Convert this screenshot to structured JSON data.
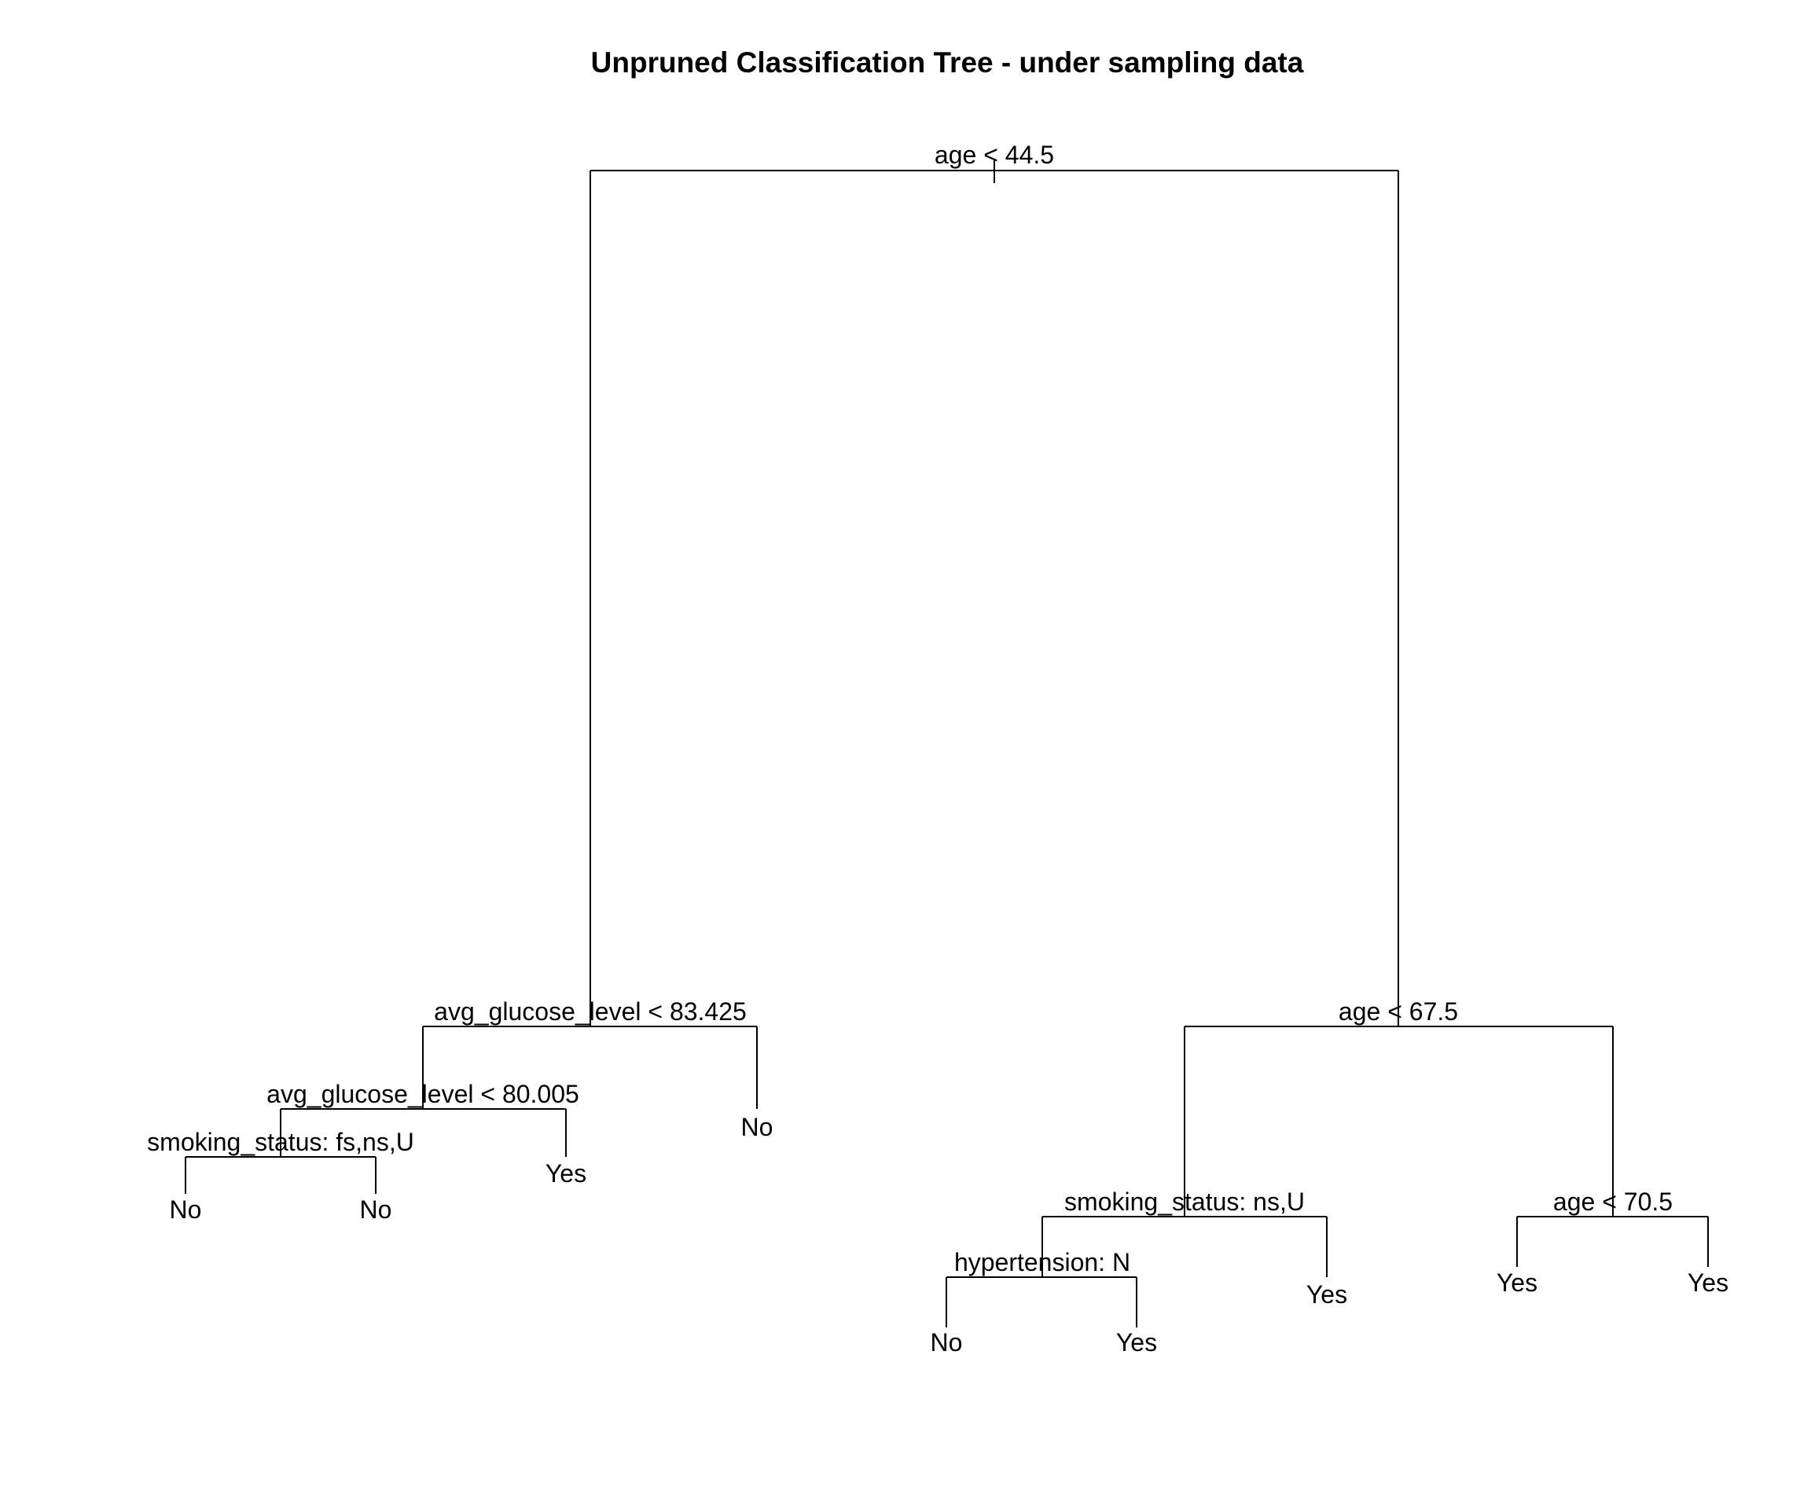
{
  "title": "Unpruned Classification Tree - under sampling data",
  "tree": {
    "split": "age < 44.5",
    "left": {
      "split": "avg_glucose_level < 83.425",
      "left": {
        "split": "avg_glucose_level < 80.005",
        "left": {
          "split": "smoking_status: fs,ns,U",
          "left": {
            "leaf": "No"
          },
          "right": {
            "leaf": "No"
          }
        },
        "right": {
          "leaf": "Yes"
        }
      },
      "right": {
        "leaf": "No"
      }
    },
    "right": {
      "split": "age < 67.5",
      "left": {
        "split": "smoking_status: ns,U",
        "left": {
          "split": "hypertension: N",
          "left": {
            "leaf": "No"
          },
          "right": {
            "leaf": "Yes"
          }
        },
        "right": {
          "leaf": "Yes"
        }
      },
      "right": {
        "split": "age < 70.5",
        "left": {
          "leaf": "Yes"
        },
        "right": {
          "leaf": "Yes"
        }
      }
    }
  }
}
